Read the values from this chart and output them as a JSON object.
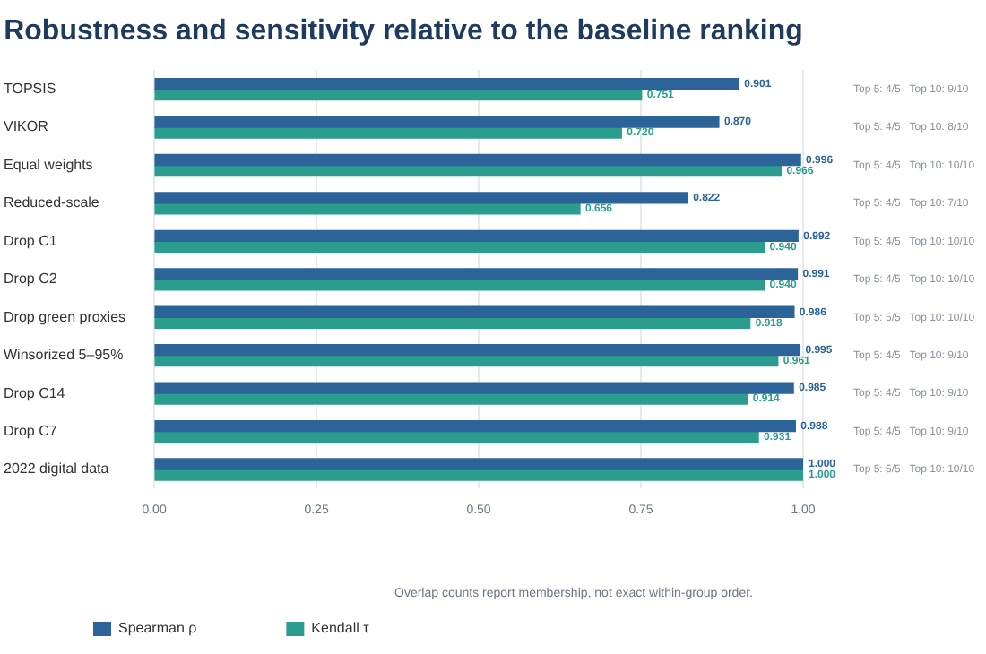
{
  "chart_data": {
    "type": "bar",
    "orientation": "horizontal",
    "title": "Robustness and sensitivity relative to the baseline ranking",
    "categories": [
      "TOPSIS",
      "VIKOR",
      "Equal weights",
      "Reduced-scale",
      "Drop C1",
      "Drop C2",
      "Drop green proxies",
      "Winsorized 5–95%",
      "Drop C14",
      "Drop C7",
      "2022 digital data"
    ],
    "series": [
      {
        "name": "Spearman ρ",
        "color": "#2c6399",
        "values": [
          0.901,
          0.87,
          0.996,
          0.822,
          0.992,
          0.991,
          0.986,
          0.995,
          0.985,
          0.988,
          1.0
        ]
      },
      {
        "name": "Kendall τ",
        "color": "#2a9d8f",
        "values": [
          0.751,
          0.72,
          0.966,
          0.656,
          0.94,
          0.94,
          0.918,
          0.961,
          0.914,
          0.931,
          1.0
        ]
      }
    ],
    "value_labels": [
      [
        "0.901",
        "0.870",
        "0.996",
        "0.822",
        "0.992",
        "0.991",
        "0.986",
        "0.995",
        "0.985",
        "0.988",
        "1.000"
      ],
      [
        "0.751",
        "0.720",
        "0.966",
        "0.656",
        "0.940",
        "0.940",
        "0.918",
        "0.961",
        "0.914",
        "0.931",
        "1.000"
      ]
    ],
    "xlim": [
      0,
      1
    ],
    "xticks": [
      {
        "value": 0,
        "label": "0.00"
      },
      {
        "value": 0.25,
        "label": "0.25"
      },
      {
        "value": 0.5,
        "label": "0.50"
      },
      {
        "value": 0.75,
        "label": "0.75"
      },
      {
        "value": 1,
        "label": "1.00"
      }
    ],
    "grid": "x",
    "legend": "bottom left",
    "annotations": [
      "Top 5: 4/5   Top 10: 9/10",
      "Top 5: 4/5   Top 10: 8/10",
      "Top 5: 4/5   Top 10: 10/10",
      "Top 5: 4/5   Top 10: 7/10",
      "Top 5: 4/5   Top 10: 10/10",
      "Top 5: 4/5   Top 10: 10/10",
      "Top 5: 5/5   Top 10: 10/10",
      "Top 5: 4/5   Top 10: 9/10",
      "Top 5: 4/5   Top 10: 9/10",
      "Top 5: 4/5   Top 10: 9/10",
      "Top 5: 5/5   Top 10: 10/10",
      "Overlap counts report membership, not exact within-group order."
    ]
  }
}
